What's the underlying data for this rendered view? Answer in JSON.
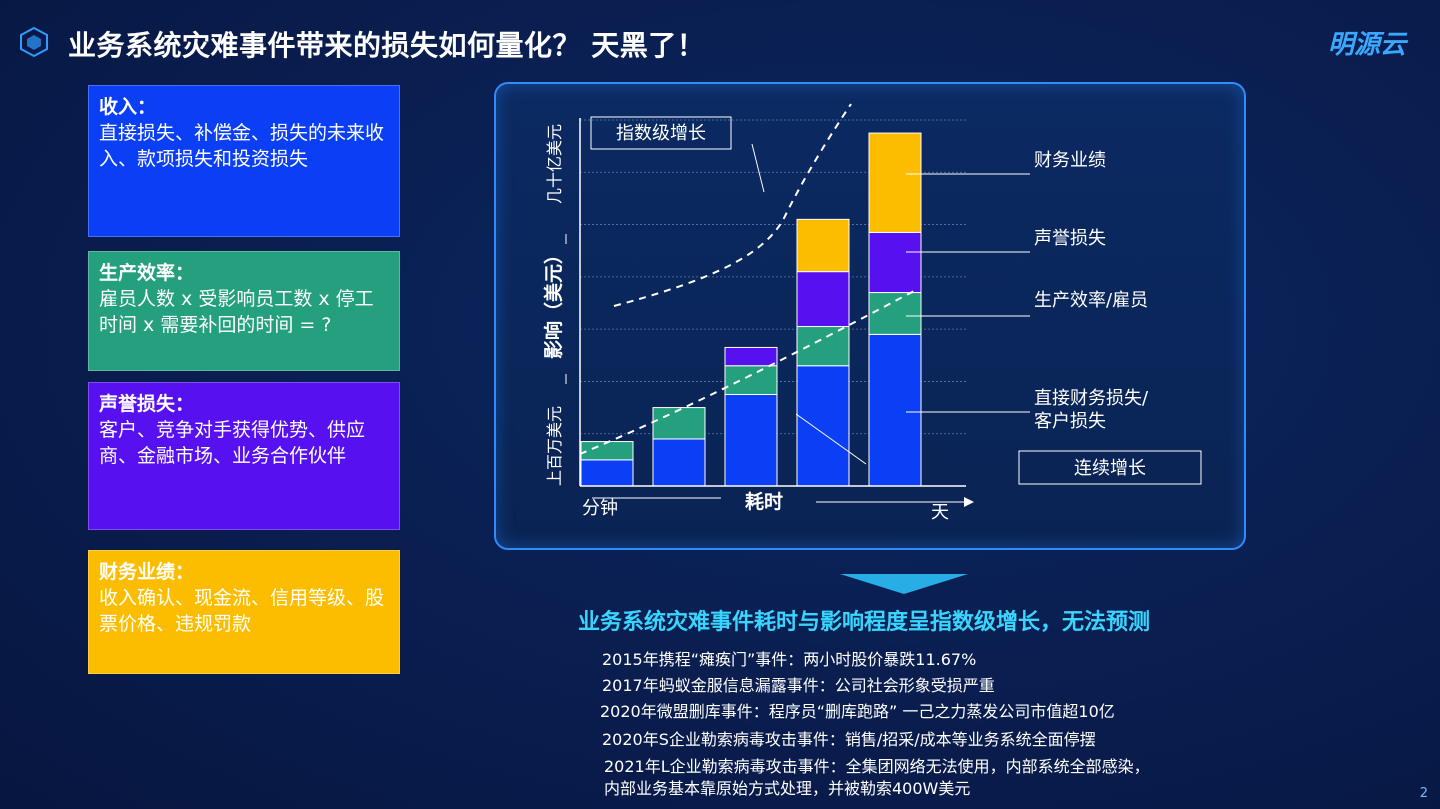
{
  "header": {
    "title": "业务系统灾难事件带来的损失如何量化？  天黑了！",
    "logo": "明源云",
    "page_number": "2"
  },
  "info_boxes": [
    {
      "id": "revenue",
      "title": "收入：",
      "body": "直接损失、补偿金、损失的未来收入、款项损失和投资损失",
      "color": "#0b3ff5"
    },
    {
      "id": "productivity",
      "title": "生产效率：",
      "body": "雇员人数 x 受影响员工数 x 停工时间 x 需要补回的时间 = ?",
      "color": "#25a07e"
    },
    {
      "id": "reputation",
      "title": "声誉损失：",
      "body": "客户、竞争对手获得优势、供应商、金融市场、业务合作伙伴",
      "color": "#5710f0"
    },
    {
      "id": "financial",
      "title": "财务业绩：",
      "body": "收入确认、现金流、信用等级、股票价格、违规罚款",
      "color": "#fcbd00"
    }
  ],
  "chart_data": {
    "type": "bar",
    "stacked": true,
    "categories": [
      "1",
      "2",
      "3",
      "4",
      "5"
    ],
    "series": [
      {
        "name": "直接财务损失/客户损失",
        "color": "#0b3ff5",
        "values": [
          0.5,
          0.9,
          1.75,
          2.3,
          2.9
        ]
      },
      {
        "name": "生产效率/雇员",
        "color": "#25a07e",
        "values": [
          0.35,
          0.6,
          0.55,
          0.75,
          0.8
        ]
      },
      {
        "name": "声誉损失",
        "color": "#5710f0",
        "values": [
          0,
          0,
          0.35,
          1.05,
          1.15
        ]
      },
      {
        "name": "财务业绩",
        "color": "#fcbd00",
        "values": [
          0,
          0,
          0,
          1.0,
          1.9
        ]
      }
    ],
    "ylim": [
      0,
      7
    ],
    "ylabel": "影响（美元）",
    "y_low_label": "上百万美元",
    "y_high_label": "几十亿美元",
    "xlabel": "耗时",
    "x_start_label": "分钟",
    "x_end_label": "天",
    "annotations": {
      "exponential": "指数级增长",
      "continuous": "连续增长"
    },
    "grid": true
  },
  "headline": "业务系统灾难事件耗时与影响程度呈指数级增长，无法预测",
  "events": [
    "2015年携程“瘫痪门”事件：两小时股价暴跌11.67%",
    "2017年蚂蚁金服信息漏露事件：公司社会形象受损严重",
    "2020年微盟删库事件：程序员“删库跑路” 一己之力蒸发公司市值超10亿",
    "2020年S企业勒索病毒攻击事件：销售/招采/成本等业务系统全面停摆",
    "2021年L企业勒索病毒攻击事件：全集团网络无法使用，内部系统全部感染，",
    "内部业务基本靠原始方式处理，并被勒索400W美元"
  ]
}
